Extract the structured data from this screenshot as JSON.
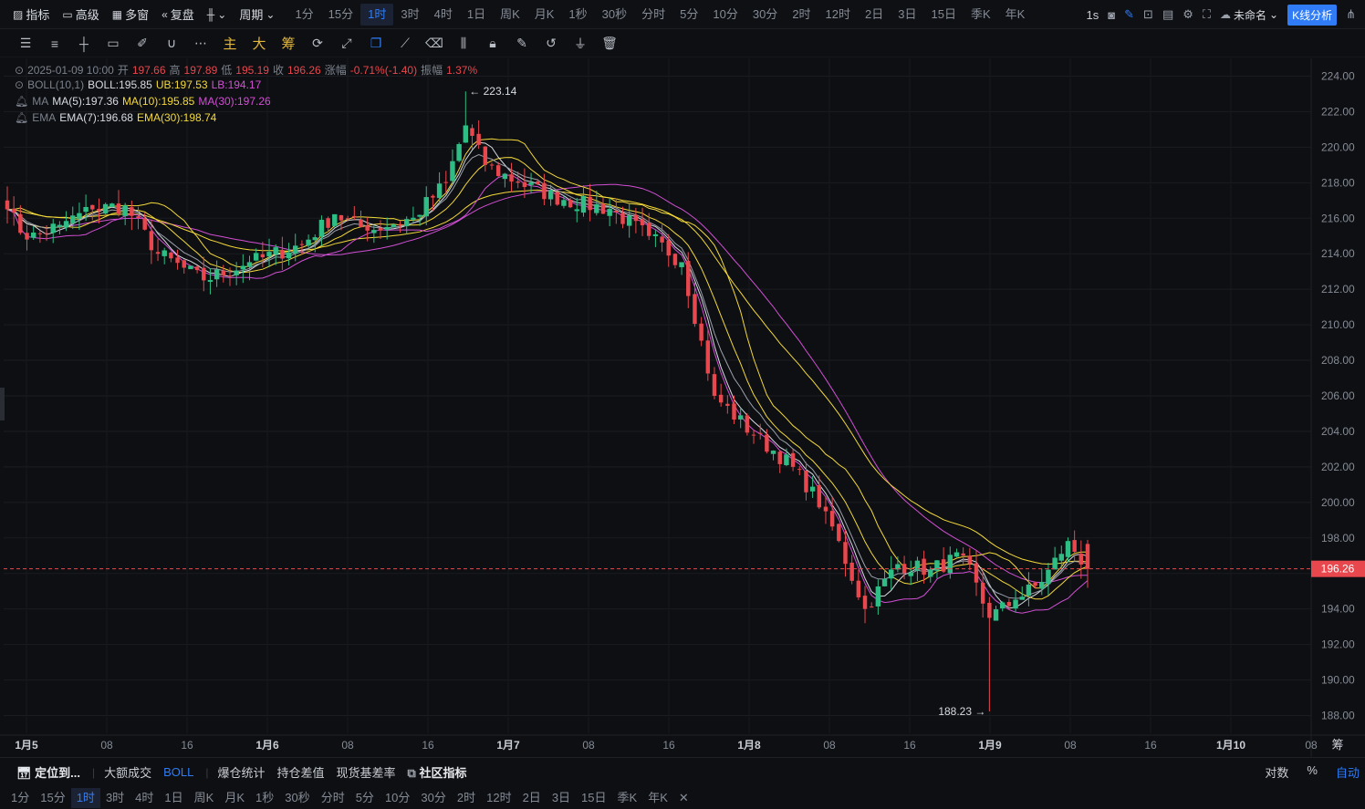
{
  "topbar": {
    "indicator": "指标",
    "advanced": "高级",
    "multi_window": "多窗",
    "replay": "复盘",
    "period_label": "周期",
    "periods": [
      "1分",
      "15分",
      "1时",
      "3时",
      "4时",
      "1日",
      "周K",
      "月K",
      "1秒",
      "30秒",
      "分时",
      "5分",
      "10分",
      "30分",
      "2时",
      "12时",
      "2日",
      "3日",
      "15日",
      "季K",
      "年K"
    ],
    "active_period": "1时",
    "interval_readout": "1s",
    "layout_name": "未命名",
    "kline_analysis": "K线分析"
  },
  "toolbar2": {
    "main": "主",
    "large": "大",
    "chips": "筹"
  },
  "ohlc": {
    "time": "2025-01-09 10:00",
    "open_label": "开",
    "open": "197.66",
    "high_label": "高",
    "high": "197.89",
    "low_label": "低",
    "low": "195.19",
    "close_label": "收",
    "close": "196.26",
    "change_label": "涨幅",
    "change": "-0.71%(-1.40)",
    "amp_label": "振幅",
    "amp": "1.37%"
  },
  "indicators": {
    "boll_name": "BOLL(10,1)",
    "boll": "BOLL:195.85",
    "ub": "UB:197.53",
    "lb": "LB:194.17",
    "ma_name": "MA",
    "ma5": "MA(5):197.36",
    "ma10": "MA(10):195.85",
    "ma30": "MA(30):197.26",
    "ema_name": "EMA",
    "ema7": "EMA(7):196.68",
    "ema30": "EMA(30):198.74"
  },
  "colors": {
    "up": "#2ebd85",
    "down": "#e8474d",
    "boll": "#e8e8e8",
    "ub": "#f3d93a",
    "lb": "#d14fd4",
    "accent": "#2f7cf6"
  },
  "chart_data": {
    "type": "candlestick",
    "ylim": [
      187,
      225
    ],
    "y_ticks": [
      "224.00",
      "222.00",
      "220.00",
      "218.00",
      "216.00",
      "214.00",
      "212.00",
      "210.00",
      "208.00",
      "206.00",
      "204.00",
      "202.00",
      "200.00",
      "198.00",
      "196.00",
      "194.00",
      "192.00",
      "190.00",
      "188.00"
    ],
    "x_ticks": [
      "1月5",
      "08",
      "16",
      "1月6",
      "08",
      "16",
      "1月7",
      "08",
      "16",
      "1月8",
      "08",
      "16",
      "1月9",
      "08",
      "16",
      "1月10",
      "08"
    ],
    "last_price": "196.26",
    "max_label": "223.14",
    "min_label": "188.23",
    "close_anchors": [
      [
        0,
        216.5
      ],
      [
        3,
        214.8
      ],
      [
        8,
        215.6
      ],
      [
        13,
        216.5
      ],
      [
        18,
        216.7
      ],
      [
        23,
        214.0
      ],
      [
        30,
        212.5
      ],
      [
        37,
        213.5
      ],
      [
        45,
        214.5
      ],
      [
        50,
        216.2
      ],
      [
        55,
        215.3
      ],
      [
        62,
        216.0
      ],
      [
        67,
        218.0
      ],
      [
        70,
        221.2
      ],
      [
        73,
        219.0
      ],
      [
        78,
        218.0
      ],
      [
        85,
        217.0
      ],
      [
        92,
        216.5
      ],
      [
        98,
        215.0
      ],
      [
        103,
        213.5
      ],
      [
        108,
        206.0
      ],
      [
        114,
        203.8
      ],
      [
        120,
        202.0
      ],
      [
        125,
        199.5
      ],
      [
        131,
        194.0
      ],
      [
        136,
        196.5
      ],
      [
        141,
        196.2
      ],
      [
        146,
        197.0
      ],
      [
        150,
        193.5
      ],
      [
        154,
        194.5
      ],
      [
        158,
        195.5
      ],
      [
        162,
        197.8
      ],
      [
        165,
        196.26
      ]
    ]
  },
  "bottombar": {
    "locate": "定位到...",
    "big_trades": "大额成交",
    "boll": "BOLL",
    "liquidation": "爆仓统计",
    "oi_diff": "持仓差值",
    "basis": "现货基差率",
    "community": "社区指标",
    "log": "对数",
    "percent": "%",
    "auto": "自动"
  },
  "periods2": [
    "1分",
    "15分",
    "1时",
    "3时",
    "4时",
    "1日",
    "周K",
    "月K",
    "1秒",
    "30秒",
    "分时",
    "5分",
    "10分",
    "30分",
    "2时",
    "12时",
    "2日",
    "3日",
    "15日",
    "季K",
    "年K"
  ],
  "periods2_active": "1时",
  "corner": "筹"
}
